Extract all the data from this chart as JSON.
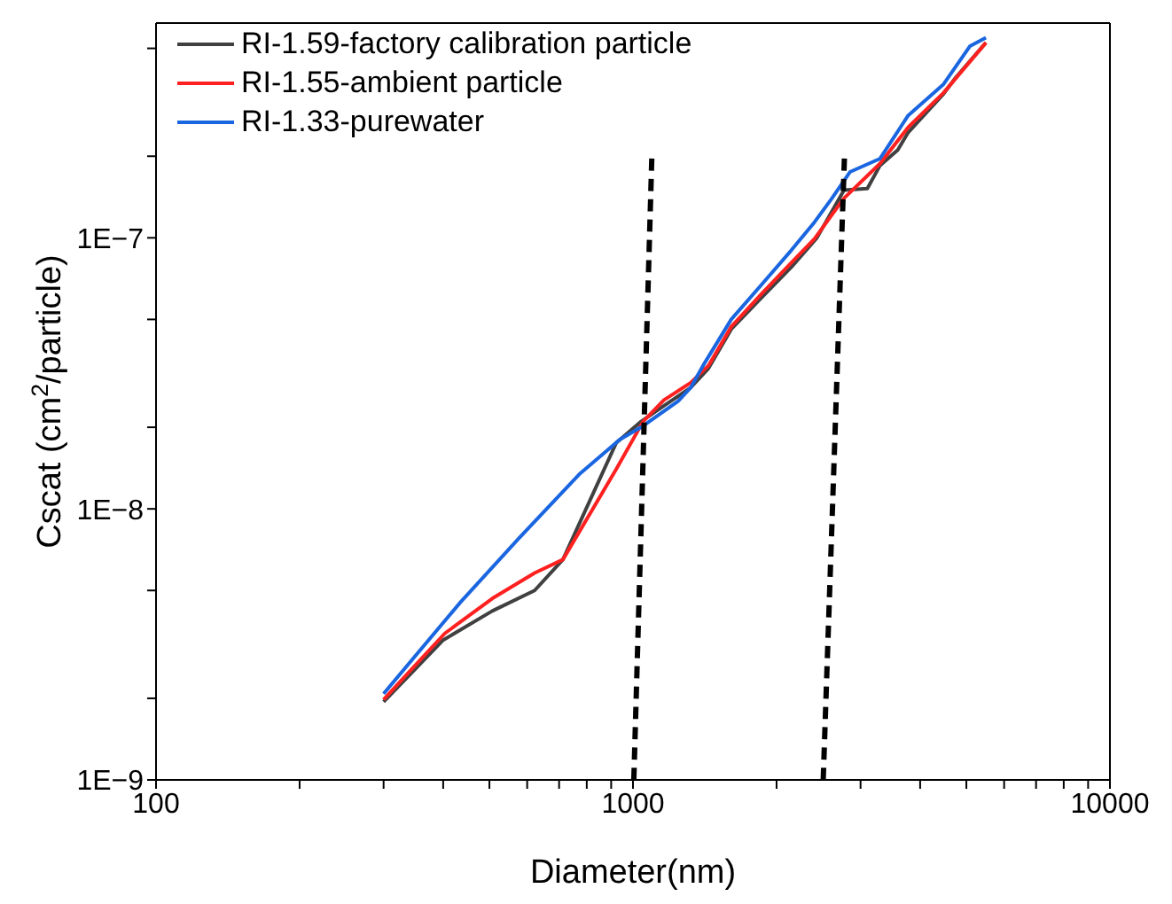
{
  "chart_data": {
    "type": "line",
    "xlabel": "Diameter(nm)",
    "ylabel": "Cscat (cm$^{2}$/particle)",
    "log": "xy",
    "grid": false,
    "legend": "top left",
    "marker": "none",
    "xlim": [
      100,
      10000
    ],
    "xticks": [
      100,
      {
        "value": 200,
        "label": null
      },
      {
        "value": 300,
        "label": null
      },
      {
        "value": 400,
        "label": null
      },
      {
        "value": 500,
        "label": null
      },
      {
        "value": 600,
        "label": null
      },
      {
        "value": 700,
        "label": null
      },
      {
        "value": 800,
        "label": null
      },
      {
        "value": 900,
        "label": null
      },
      1000,
      {
        "value": 2000,
        "label": null
      },
      {
        "value": 3000,
        "label": null
      },
      {
        "value": 4000,
        "label": null
      },
      {
        "value": 5000,
        "label": null
      },
      {
        "value": 6000,
        "label": null
      },
      {
        "value": 7000,
        "label": null
      },
      {
        "value": 8000,
        "label": null
      },
      {
        "value": 9000,
        "label": null
      },
      10000
    ],
    "ylim": [
      1e-09,
      6.2e-07
    ],
    "yticks": [
      {
        "value": 1e-09,
        "label": "1E−9"
      },
      {
        "value": 2e-09,
        "label": null
      },
      {
        "value": 5e-09,
        "label": null
      },
      {
        "value": 1e-08,
        "label": "1E−8"
      },
      {
        "value": 2e-08,
        "label": null
      },
      {
        "value": 5e-08,
        "label": null
      },
      {
        "value": 1e-07,
        "label": "1E−7"
      },
      {
        "value": 2e-07,
        "label": null
      },
      {
        "value": 5e-07,
        "label": null
      }
    ],
    "series": [
      {
        "name": "RI-1.59-factory calibration particle",
        "color": "#404040",
        "x": [
          300,
          400,
          507,
          622,
          713,
          922,
          1040,
          1161,
          1321,
          1440,
          1607,
          1858,
          2148,
          2430,
          2770,
          3100,
          3296,
          3590,
          3777,
          4480,
          4750,
          5495
        ],
        "values": [
          1.94e-09,
          3.28e-09,
          4.2e-09,
          5e-09,
          6.5e-09,
          1.75e-08,
          2.1e-08,
          2.4e-08,
          2.8e-08,
          3.3e-08,
          4.6e-08,
          6e-08,
          7.8e-08,
          1e-07,
          1.5e-07,
          1.52e-07,
          1.85e-07,
          2.11e-07,
          2.45e-07,
          3.4e-07,
          3.9e-07,
          5.25e-07
        ]
      },
      {
        "name": "RI-1.55-ambient particle",
        "color": "#ff2020",
        "x": [
          300,
          403,
          507,
          622,
          713,
          922,
          1050,
          1161,
          1321,
          1440,
          1607,
          1858,
          2148,
          2400,
          2770,
          3296,
          3777,
          4480,
          5495
        ],
        "values": [
          1.98e-09,
          3.47e-09,
          4.67e-09,
          5.8e-09,
          6.5e-09,
          1.4e-08,
          2.1e-08,
          2.52e-08,
          2.92e-08,
          3.38e-08,
          4.7e-08,
          6.2e-08,
          8.1e-08,
          9.9e-08,
          1.4e-07,
          1.88e-07,
          2.56e-07,
          3.43e-07,
          5.25e-07
        ]
      },
      {
        "name": "RI-1.33-purewater",
        "color": "#1a66e0",
        "x": [
          300,
          435,
          577,
          771,
          938,
          1040,
          1245,
          1321,
          1403,
          1607,
          1858,
          2148,
          2400,
          2614,
          2850,
          3296,
          3777,
          4480,
          5090,
          5495
        ],
        "values": [
          2.08e-09,
          4.53e-09,
          7.8e-09,
          1.34e-08,
          1.8e-08,
          2e-08,
          2.5e-08,
          2.8e-08,
          3.38e-08,
          5e-08,
          6.7e-08,
          9e-08,
          1.14e-07,
          1.4e-07,
          1.75e-07,
          1.96e-07,
          2.83e-07,
          3.69e-07,
          5.1e-07,
          5.48e-07
        ]
      },
      {
        "color": "#000000",
        "line_style": "dashed",
        "x": [
          1004,
          1095
        ],
        "values": [
          1e-09,
          1.96e-07
        ]
      },
      {
        "color": "#000000",
        "line_style": "dashed",
        "x": [
          2505,
          2775
        ],
        "values": [
          1e-09,
          1.96e-07
        ]
      }
    ]
  }
}
